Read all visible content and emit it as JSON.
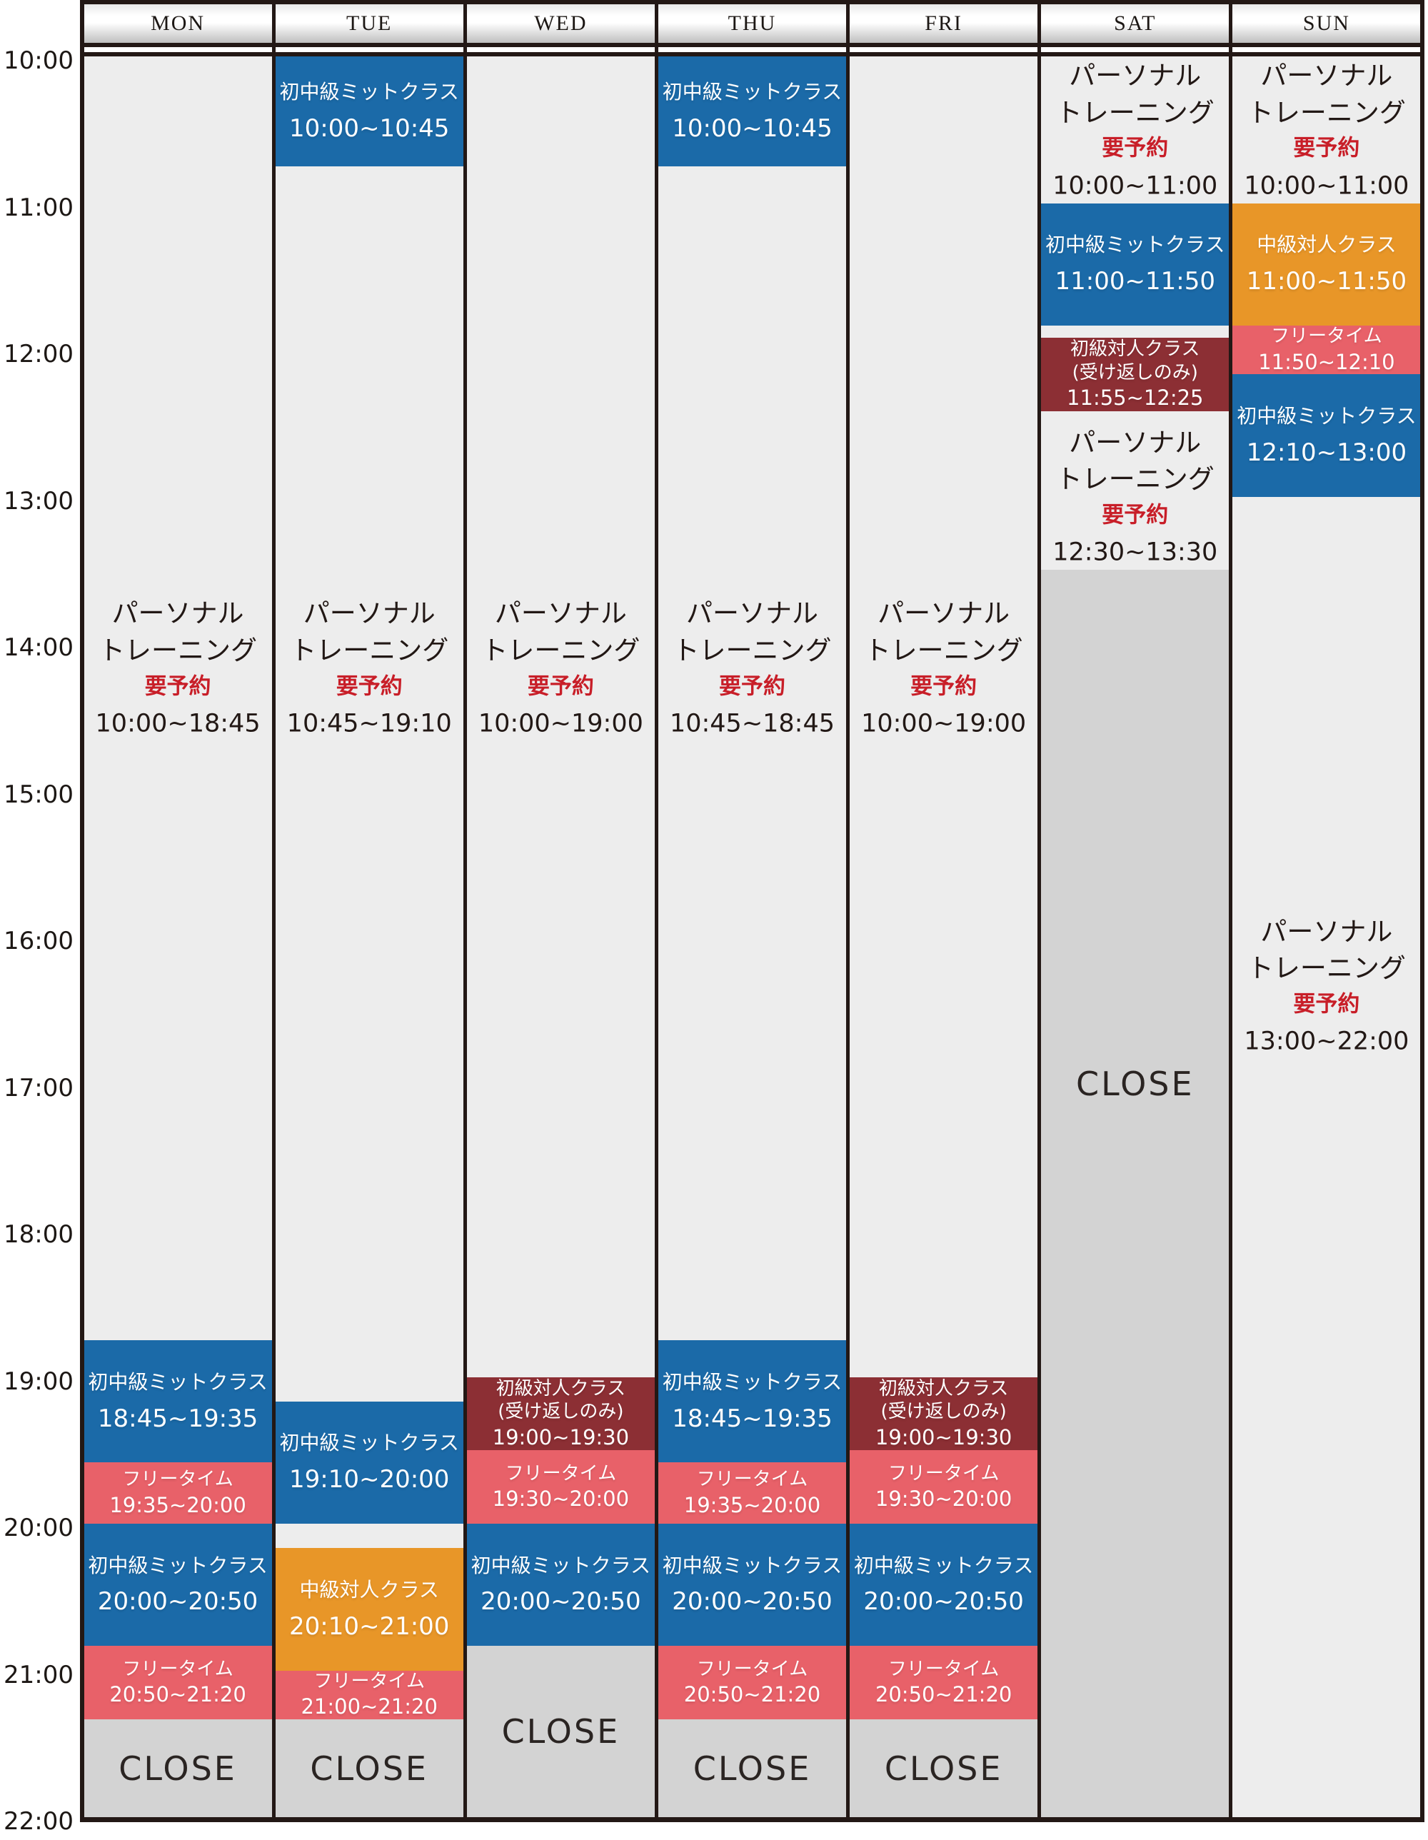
{
  "title": "weekly-class-schedule",
  "days": [
    "MON",
    "TUE",
    "WED",
    "THU",
    "FRI",
    "SAT",
    "SUN"
  ],
  "time_axis": [
    "10:00",
    "11:00",
    "12:00",
    "13:00",
    "14:00",
    "15:00",
    "16:00",
    "17:00",
    "18:00",
    "19:00",
    "20:00",
    "21:00",
    "22:00"
  ],
  "labels": {
    "personal_line1": "パーソナル",
    "personal_line2": "トレーニング",
    "reserve_note": "要予約",
    "mitt": "初中級ミットクラス",
    "taijin_mid": "中級対人クラス",
    "taijin_beg": "初級対人クラス",
    "taijin_beg_sub": "(受け返しのみ)",
    "free": "フリータイム",
    "close": "CLOSE"
  },
  "palette": {
    "blue": "#1b6aa8",
    "orange": "#e89628",
    "dark_red": "#8c2f34",
    "pink": "#e86169",
    "light_gray": "#ededed",
    "close_gray": "#d3d3d3",
    "reserve_red": "#c81e28",
    "border": "#231815"
  },
  "schedule": {
    "MON": [
      {
        "type": "personal",
        "start": "10:00",
        "end": "18:45",
        "time": "10:00~18:45",
        "label_at": "14:10"
      },
      {
        "type": "mitt",
        "start": "18:45",
        "end": "19:35",
        "time": "18:45~19:35"
      },
      {
        "type": "free",
        "start": "19:35",
        "end": "20:00",
        "time": "19:35~20:00"
      },
      {
        "type": "mitt",
        "start": "20:00",
        "end": "20:50",
        "time": "20:00~20:50"
      },
      {
        "type": "free",
        "start": "20:50",
        "end": "21:20",
        "time": "20:50~21:20"
      },
      {
        "type": "close",
        "start": "21:20",
        "end": "22:00"
      }
    ],
    "TUE": [
      {
        "type": "mitt",
        "start": "10:00",
        "end": "10:45",
        "time": "10:00~10:45"
      },
      {
        "type": "personal",
        "start": "10:45",
        "end": "19:10",
        "time": "10:45~19:10",
        "label_at": "14:10"
      },
      {
        "type": "mitt",
        "start": "19:10",
        "end": "20:00",
        "time": "19:10~20:00"
      },
      {
        "type": "taijin_mid",
        "start": "20:10",
        "end": "21:00",
        "time": "20:10~21:00"
      },
      {
        "type": "free",
        "start": "21:00",
        "end": "21:20",
        "time": "21:00~21:20"
      },
      {
        "type": "close",
        "start": "21:20",
        "end": "22:00"
      }
    ],
    "WED": [
      {
        "type": "personal",
        "start": "10:00",
        "end": "19:00",
        "time": "10:00~19:00",
        "label_at": "14:10"
      },
      {
        "type": "taijin_beg",
        "start": "19:00",
        "end": "19:30",
        "time": "19:00~19:30"
      },
      {
        "type": "free",
        "start": "19:30",
        "end": "20:00",
        "time": "19:30~20:00"
      },
      {
        "type": "mitt",
        "start": "20:00",
        "end": "20:50",
        "time": "20:00~20:50"
      },
      {
        "type": "close",
        "start": "20:50",
        "end": "22:00"
      }
    ],
    "THU": [
      {
        "type": "mitt",
        "start": "10:00",
        "end": "10:45",
        "time": "10:00~10:45"
      },
      {
        "type": "personal",
        "start": "10:45",
        "end": "18:45",
        "time": "10:45~18:45",
        "label_at": "14:10"
      },
      {
        "type": "mitt",
        "start": "18:45",
        "end": "19:35",
        "time": "18:45~19:35"
      },
      {
        "type": "free",
        "start": "19:35",
        "end": "20:00",
        "time": "19:35~20:00"
      },
      {
        "type": "mitt",
        "start": "20:00",
        "end": "20:50",
        "time": "20:00~20:50"
      },
      {
        "type": "free",
        "start": "20:50",
        "end": "21:20",
        "time": "20:50~21:20"
      },
      {
        "type": "close",
        "start": "21:20",
        "end": "22:00"
      }
    ],
    "FRI": [
      {
        "type": "personal",
        "start": "10:00",
        "end": "19:00",
        "time": "10:00~19:00",
        "label_at": "14:10"
      },
      {
        "type": "taijin_beg",
        "start": "19:00",
        "end": "19:30",
        "time": "19:00~19:30"
      },
      {
        "type": "free",
        "start": "19:30",
        "end": "20:00",
        "time": "19:30~20:00"
      },
      {
        "type": "mitt",
        "start": "20:00",
        "end": "20:50",
        "time": "20:00~20:50"
      },
      {
        "type": "free",
        "start": "20:50",
        "end": "21:20",
        "time": "20:50~21:20"
      },
      {
        "type": "close",
        "start": "21:20",
        "end": "22:00"
      }
    ],
    "SAT": [
      {
        "type": "personal",
        "start": "10:00",
        "end": "11:00",
        "time": "10:00~11:00"
      },
      {
        "type": "mitt",
        "start": "11:00",
        "end": "11:50",
        "time": "11:00~11:50"
      },
      {
        "type": "taijin_beg",
        "start": "11:55",
        "end": "12:25",
        "time": "11:55~12:25"
      },
      {
        "type": "personal",
        "start": "12:30",
        "end": "13:30",
        "time": "12:30~13:30"
      },
      {
        "type": "close",
        "start": "13:30",
        "end": "22:00",
        "label_at": "17:00"
      }
    ],
    "SUN": [
      {
        "type": "personal",
        "start": "10:00",
        "end": "11:00",
        "time": "10:00~11:00"
      },
      {
        "type": "taijin_mid",
        "start": "11:00",
        "end": "11:50",
        "time": "11:00~11:50"
      },
      {
        "type": "free",
        "start": "11:50",
        "end": "12:10",
        "time": "11:50~12:10"
      },
      {
        "type": "mitt",
        "start": "12:10",
        "end": "13:00",
        "time": "12:10~13:00"
      },
      {
        "type": "personal",
        "start": "13:00",
        "end": "22:00",
        "time": "13:00~22:00",
        "label_at": "16:20"
      }
    ]
  }
}
